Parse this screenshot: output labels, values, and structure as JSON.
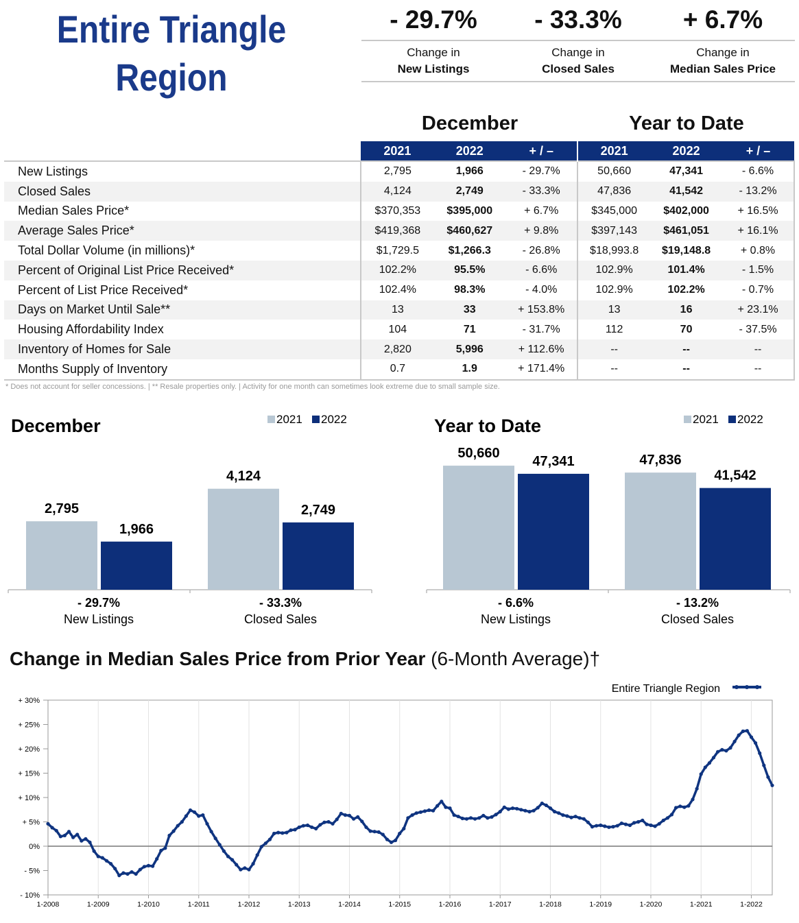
{
  "header": {
    "title_line1": "Entire Triangle",
    "title_line2": "Region",
    "changes": [
      {
        "value": "- 29.7%",
        "label1": "Change in",
        "label2": "New Listings"
      },
      {
        "value": "- 33.3%",
        "label1": "Change in",
        "label2": "Closed Sales"
      },
      {
        "value": "+ 6.7%",
        "label1": "Change in",
        "label2": "Median Sales Price"
      }
    ]
  },
  "table": {
    "section1": "December",
    "section2": "Year to Date",
    "columns": [
      "2021",
      "2022",
      "+ / –",
      "2021",
      "2022",
      "+ / –"
    ],
    "rows": [
      {
        "label": "New Listings",
        "values": [
          "2,795",
          "1,966",
          "- 29.7%",
          "50,660",
          "47,341",
          "- 6.6%"
        ]
      },
      {
        "label": "Closed Sales",
        "values": [
          "4,124",
          "2,749",
          "- 33.3%",
          "47,836",
          "41,542",
          "- 13.2%"
        ]
      },
      {
        "label": "Median Sales Price*",
        "values": [
          "$370,353",
          "$395,000",
          "+ 6.7%",
          "$345,000",
          "$402,000",
          "+ 16.5%"
        ]
      },
      {
        "label": "Average Sales Price*",
        "values": [
          "$419,368",
          "$460,627",
          "+ 9.8%",
          "$397,143",
          "$461,051",
          "+ 16.1%"
        ]
      },
      {
        "label": "Total Dollar Volume (in millions)*",
        "values": [
          "$1,729.5",
          "$1,266.3",
          "- 26.8%",
          "$18,993.8",
          "$19,148.8",
          "+ 0.8%"
        ]
      },
      {
        "label": "Percent of Original List Price Received*",
        "values": [
          "102.2%",
          "95.5%",
          "- 6.6%",
          "102.9%",
          "101.4%",
          "- 1.5%"
        ]
      },
      {
        "label": "Percent of List Price Received*",
        "values": [
          "102.4%",
          "98.3%",
          "- 4.0%",
          "102.9%",
          "102.2%",
          "- 0.7%"
        ]
      },
      {
        "label": "Days on Market Until Sale**",
        "values": [
          "13",
          "33",
          "+ 153.8%",
          "13",
          "16",
          "+ 23.1%"
        ]
      },
      {
        "label": "Housing Affordability Index",
        "values": [
          "104",
          "71",
          "- 31.7%",
          "112",
          "70",
          "- 37.5%"
        ]
      },
      {
        "label": "Inventory of Homes for Sale",
        "values": [
          "2,820",
          "5,996",
          "+ 112.6%",
          "--",
          "--",
          "--"
        ]
      },
      {
        "label": "Months Supply of Inventory",
        "values": [
          "0.7",
          "1.9",
          "+ 171.4%",
          "--",
          "--",
          "--"
        ]
      }
    ],
    "footnote": "* Does not account for seller concessions.  |  ** Resale properties only.  |  Activity for one month can sometimes look extreme due to small sample size."
  },
  "colors": {
    "brand": "#1a3a8a",
    "navy": "#0d2f7a",
    "light": "#b8c7d3",
    "line": "#0f3480"
  },
  "chart_data": [
    {
      "type": "bar",
      "title": "December",
      "legend": [
        "2021",
        "2022"
      ],
      "categories": [
        "New Listings",
        "Closed Sales"
      ],
      "category_changes": [
        "- 29.7%",
        "- 33.3%"
      ],
      "series": [
        {
          "name": "2021",
          "values": [
            2795,
            4124
          ],
          "labels": [
            "2,795",
            "4,124"
          ]
        },
        {
          "name": "2022",
          "values": [
            1966,
            2749
          ],
          "labels": [
            "1,966",
            "2,749"
          ]
        }
      ]
    },
    {
      "type": "bar",
      "title": "Year to Date",
      "legend": [
        "2021",
        "2022"
      ],
      "categories": [
        "New Listings",
        "Closed Sales"
      ],
      "category_changes": [
        "- 6.6%",
        "- 13.2%"
      ],
      "series": [
        {
          "name": "2021",
          "values": [
            50660,
            47836
          ],
          "labels": [
            "50,660",
            "47,836"
          ]
        },
        {
          "name": "2022",
          "values": [
            47341,
            41542
          ],
          "labels": [
            "47,341",
            "41,542"
          ]
        }
      ]
    },
    {
      "type": "line",
      "title": "Change in Median Sales Price from Prior Year",
      "title_suffix": "(6-Month Average)†",
      "legend": [
        "Entire Triangle Region"
      ],
      "ylim": [
        -10,
        30
      ],
      "yticks": [
        "+ 30%",
        "+ 25%",
        "+ 20%",
        "+ 15%",
        "+ 10%",
        "+ 5%",
        "0%",
        "- 5%",
        "- 10%"
      ],
      "xticks": [
        "1-2008",
        "1-2009",
        "1-2010",
        "1-2011",
        "1-2012",
        "1-2013",
        "1-2014",
        "1-2015",
        "1-2016",
        "1-2017",
        "1-2018",
        "1-2019",
        "1-2020",
        "1-2021",
        "1-2022"
      ],
      "x_start_year": 2008,
      "series": [
        {
          "name": "Entire Triangle Region",
          "values": [
            4.6,
            3.8,
            3.2,
            2.0,
            2.2,
            3.0,
            1.8,
            2.4,
            1.1,
            1.5,
            0.8,
            -1.0,
            -2.1,
            -2.4,
            -3.0,
            -3.6,
            -4.6,
            -6.0,
            -5.5,
            -5.7,
            -5.3,
            -5.7,
            -4.8,
            -4.2,
            -4.0,
            -4.1,
            -2.6,
            -0.9,
            -0.4,
            2.2,
            3.1,
            4.2,
            5.0,
            6.2,
            7.4,
            7.0,
            6.2,
            6.4,
            4.6,
            3.0,
            1.6,
            0.3,
            -1.0,
            -2.1,
            -2.8,
            -3.8,
            -4.8,
            -4.5,
            -4.8,
            -3.6,
            -1.8,
            -0.1,
            0.6,
            1.4,
            2.6,
            2.8,
            2.7,
            2.8,
            3.3,
            3.4,
            3.9,
            4.2,
            4.3,
            3.9,
            3.6,
            4.4,
            4.9,
            5.0,
            4.6,
            5.5,
            6.7,
            6.4,
            6.3,
            5.6,
            6.0,
            5.1,
            3.9,
            3.1,
            3.0,
            2.9,
            2.4,
            1.4,
            0.8,
            1.2,
            2.6,
            3.6,
            5.8,
            6.4,
            6.8,
            7.0,
            7.2,
            7.4,
            7.3,
            8.3,
            9.2,
            8.0,
            7.8,
            6.4,
            6.1,
            5.7,
            5.6,
            5.8,
            5.6,
            5.8,
            6.3,
            5.8,
            6.0,
            6.5,
            7.1,
            8.0,
            7.6,
            7.8,
            7.7,
            7.5,
            7.3,
            7.1,
            7.3,
            7.9,
            8.8,
            8.4,
            7.8,
            7.1,
            6.8,
            6.4,
            6.2,
            5.9,
            6.1,
            5.8,
            5.6,
            4.9,
            4.0,
            4.2,
            4.3,
            4.1,
            3.9,
            4.0,
            4.2,
            4.7,
            4.5,
            4.3,
            4.8,
            5.0,
            5.3,
            4.5,
            4.3,
            4.1,
            4.6,
            5.3,
            5.8,
            6.5,
            7.9,
            8.2,
            8.0,
            8.3,
            9.6,
            11.8,
            14.8,
            16.2,
            17.1,
            18.2,
            19.4,
            19.8,
            19.6,
            20.2,
            21.5,
            22.8,
            23.6,
            23.7,
            22.4,
            21.2,
            19.1,
            16.6,
            14.2,
            12.5
          ]
        }
      ]
    }
  ]
}
